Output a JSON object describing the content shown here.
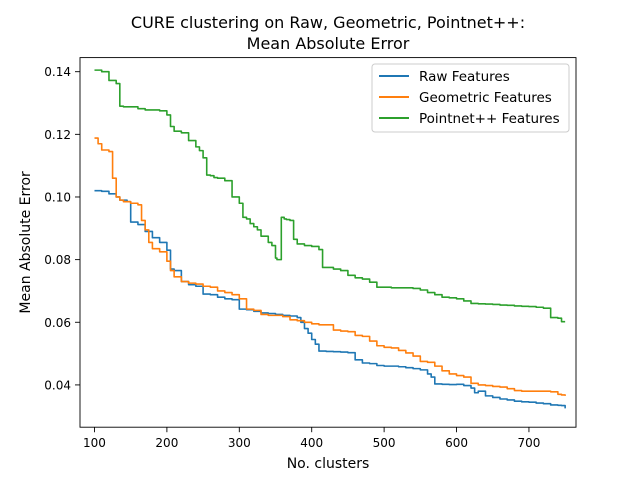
{
  "chart_data": {
    "type": "line",
    "title": [
      "CURE clustering on Raw, Geometric, Pointnet++:",
      "Mean Absolute Error"
    ],
    "xlabel": "No. clusters",
    "ylabel": "Mean Absolute Error",
    "xlim": [
      80,
      765
    ],
    "ylim": [
      0.0265,
      0.1445
    ],
    "xticks": [
      100,
      200,
      300,
      400,
      500,
      600,
      700
    ],
    "yticks": [
      0.04,
      0.06,
      0.08,
      0.1,
      0.12,
      0.14
    ],
    "ytick_labels": [
      "0.04",
      "0.06",
      "0.08",
      "0.10",
      "0.12",
      "0.14"
    ],
    "grid": false,
    "legend_position": "top-right",
    "series": [
      {
        "name": "Raw Features",
        "color": "#1f77b4",
        "x": [
          100,
          110,
          120,
          130,
          135,
          145,
          150,
          160,
          170,
          180,
          190,
          200,
          205,
          210,
          220,
          230,
          240,
          250,
          260,
          270,
          280,
          290,
          300,
          310,
          320,
          330,
          340,
          350,
          360,
          370,
          380,
          385,
          390,
          395,
          400,
          405,
          410,
          420,
          430,
          440,
          450,
          460,
          470,
          480,
          490,
          500,
          510,
          520,
          530,
          540,
          550,
          560,
          565,
          570,
          580,
          590,
          600,
          610,
          620,
          625,
          630,
          640,
          650,
          660,
          670,
          680,
          690,
          700,
          710,
          720,
          730,
          740,
          745,
          750
        ],
        "y": [
          0.102,
          0.1018,
          0.101,
          0.1,
          0.099,
          0.0985,
          0.092,
          0.0912,
          0.089,
          0.087,
          0.0855,
          0.083,
          0.077,
          0.0765,
          0.073,
          0.072,
          0.0715,
          0.069,
          0.0688,
          0.068,
          0.0675,
          0.0672,
          0.0642,
          0.064,
          0.0635,
          0.063,
          0.0628,
          0.0625,
          0.0622,
          0.062,
          0.0615,
          0.06,
          0.058,
          0.0565,
          0.0545,
          0.053,
          0.0508,
          0.0507,
          0.0506,
          0.0505,
          0.0503,
          0.048,
          0.047,
          0.0468,
          0.0462,
          0.046,
          0.046,
          0.0458,
          0.0455,
          0.0452,
          0.0448,
          0.0435,
          0.0425,
          0.0403,
          0.0402,
          0.0401,
          0.0402,
          0.0398,
          0.039,
          0.0375,
          0.038,
          0.0365,
          0.036,
          0.0355,
          0.0352,
          0.0348,
          0.0346,
          0.0345,
          0.0342,
          0.034,
          0.0336,
          0.0335,
          0.0334,
          0.0325
        ]
      },
      {
        "name": "Geometric Features",
        "color": "#ff7f0e",
        "x": [
          100,
          105,
          110,
          120,
          125,
          130,
          135,
          140,
          150,
          160,
          165,
          170,
          175,
          180,
          190,
          200,
          205,
          210,
          220,
          230,
          240,
          250,
          260,
          270,
          280,
          290,
          300,
          310,
          320,
          330,
          340,
          350,
          360,
          370,
          380,
          390,
          400,
          410,
          420,
          430,
          440,
          450,
          460,
          470,
          480,
          490,
          500,
          510,
          520,
          530,
          540,
          550,
          560,
          570,
          580,
          590,
          600,
          610,
          620,
          630,
          640,
          650,
          660,
          670,
          680,
          690,
          700,
          710,
          720,
          730,
          740,
          745,
          750
        ],
        "y": [
          0.1188,
          0.117,
          0.115,
          0.1145,
          0.106,
          0.1,
          0.099,
          0.0985,
          0.098,
          0.0975,
          0.0925,
          0.0895,
          0.0855,
          0.0835,
          0.0825,
          0.0795,
          0.0765,
          0.0745,
          0.073,
          0.0725,
          0.0722,
          0.0715,
          0.0712,
          0.07,
          0.0695,
          0.0688,
          0.0675,
          0.0642,
          0.0638,
          0.0625,
          0.0622,
          0.0622,
          0.0618,
          0.0608,
          0.0605,
          0.06,
          0.0595,
          0.0592,
          0.0592,
          0.0575,
          0.0572,
          0.057,
          0.0558,
          0.0555,
          0.054,
          0.0525,
          0.052,
          0.0518,
          0.051,
          0.0502,
          0.0492,
          0.0475,
          0.0472,
          0.046,
          0.0445,
          0.0435,
          0.043,
          0.0425,
          0.0405,
          0.04,
          0.0398,
          0.0395,
          0.0393,
          0.0388,
          0.0382,
          0.038,
          0.038,
          0.038,
          0.038,
          0.0378,
          0.037,
          0.0368,
          0.0365
        ]
      },
      {
        "name": "Pointnet++ Features",
        "color": "#2ca02c",
        "x": [
          100,
          105,
          110,
          120,
          130,
          135,
          140,
          150,
          160,
          170,
          180,
          190,
          200,
          205,
          210,
          220,
          230,
          240,
          245,
          250,
          255,
          260,
          265,
          270,
          280,
          290,
          300,
          305,
          310,
          315,
          320,
          325,
          330,
          340,
          345,
          350,
          352,
          355,
          358,
          360,
          362,
          365,
          370,
          375,
          380,
          390,
          400,
          410,
          415,
          420,
          430,
          440,
          450,
          460,
          470,
          480,
          490,
          500,
          510,
          520,
          530,
          540,
          550,
          560,
          570,
          580,
          590,
          600,
          610,
          620,
          630,
          640,
          650,
          660,
          670,
          680,
          690,
          700,
          710,
          720,
          730,
          740,
          745,
          750
        ],
        "y": [
          0.1405,
          0.1405,
          0.14,
          0.1372,
          0.1362,
          0.129,
          0.1288,
          0.1288,
          0.1282,
          0.1278,
          0.1278,
          0.1275,
          0.1262,
          0.1225,
          0.121,
          0.1205,
          0.118,
          0.116,
          0.1148,
          0.1125,
          0.107,
          0.1068,
          0.1062,
          0.106,
          0.1052,
          0.1,
          0.098,
          0.0935,
          0.093,
          0.0915,
          0.0905,
          0.0895,
          0.0875,
          0.0855,
          0.0845,
          0.0805,
          0.08,
          0.08,
          0.0935,
          0.0935,
          0.093,
          0.0928,
          0.0925,
          0.0865,
          0.085,
          0.0845,
          0.0842,
          0.0832,
          0.0775,
          0.0775,
          0.077,
          0.0765,
          0.075,
          0.0742,
          0.0738,
          0.0728,
          0.0712,
          0.0712,
          0.071,
          0.071,
          0.071,
          0.0708,
          0.0703,
          0.0695,
          0.0688,
          0.068,
          0.0678,
          0.0675,
          0.0668,
          0.066,
          0.0659,
          0.0658,
          0.0657,
          0.0655,
          0.0654,
          0.0652,
          0.0651,
          0.065,
          0.0648,
          0.0645,
          0.0615,
          0.0613,
          0.0602,
          0.0602
        ]
      }
    ]
  }
}
